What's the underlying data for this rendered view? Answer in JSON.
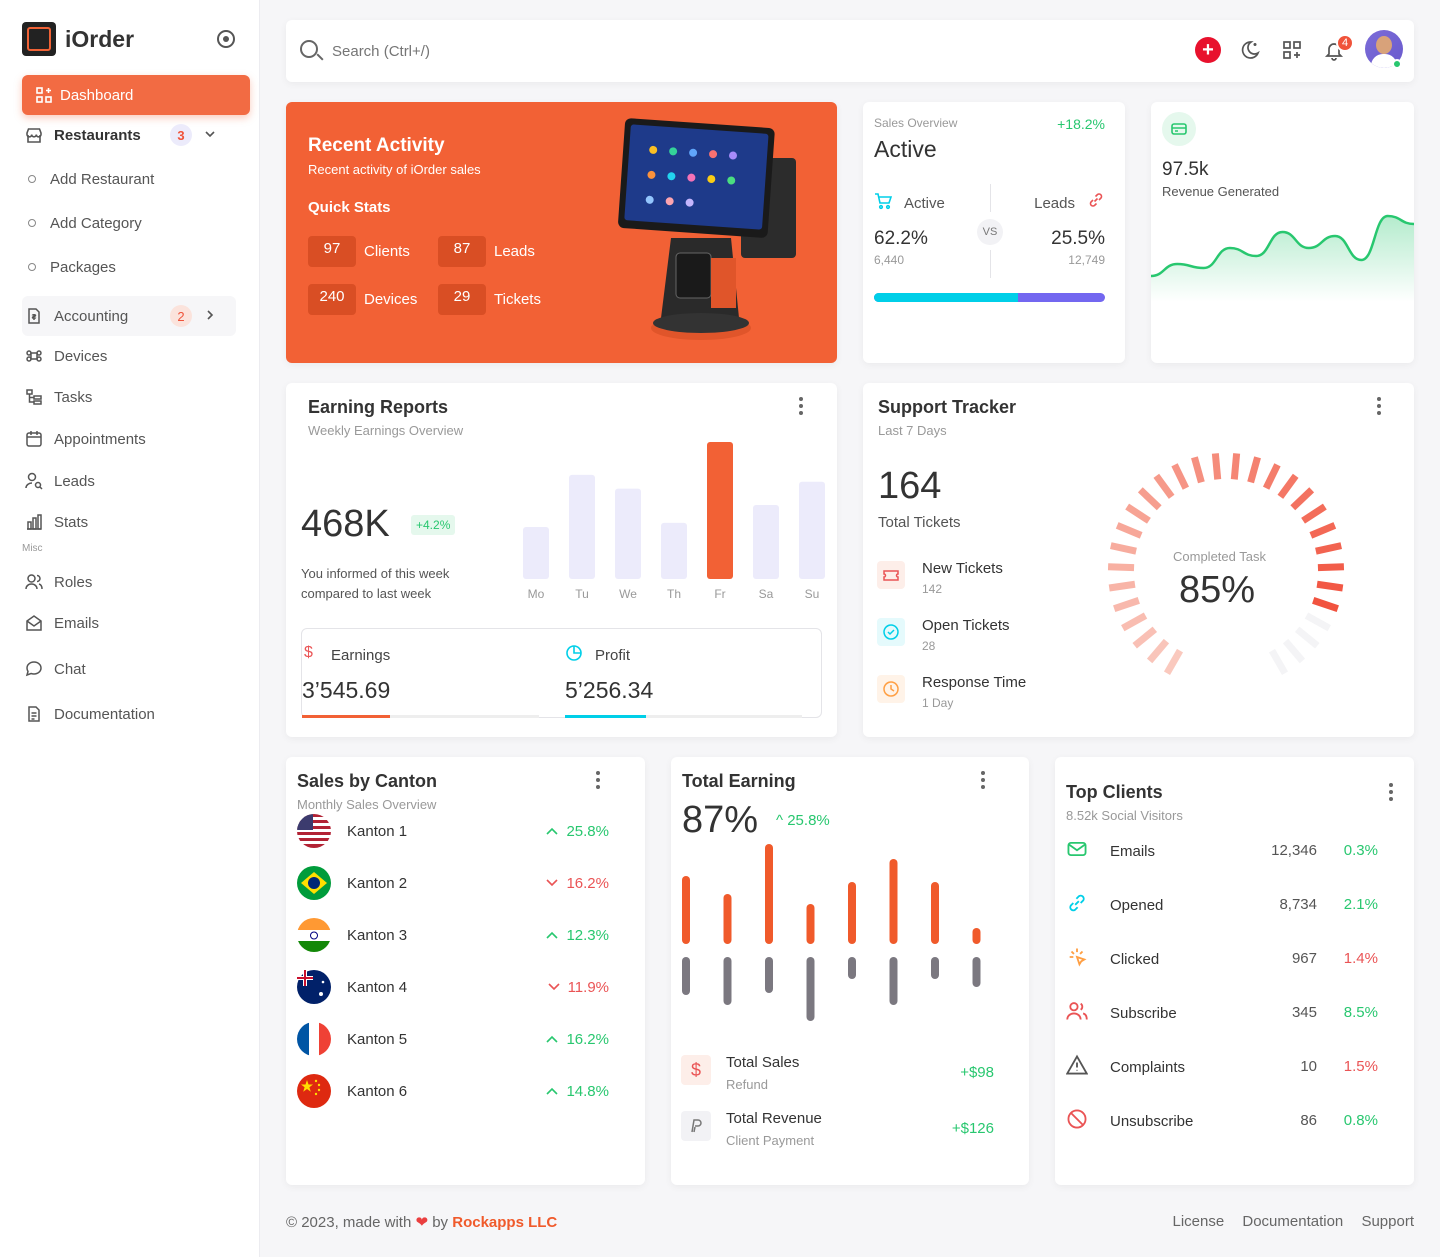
{
  "brand": {
    "name": "iOrder"
  },
  "sidebar": {
    "dashboard": "Dashboard",
    "restaurants": {
      "label": "Restaurants",
      "badge": "3"
    },
    "subs": [
      "Add Restaurant",
      "Add Category",
      "Packages"
    ],
    "accounting": {
      "label": "Accounting",
      "badge": "2"
    },
    "items": [
      "Devices",
      "Tasks",
      "Appointments",
      "Leads",
      "Stats"
    ],
    "misc_label": "Misc",
    "misc_items": [
      "Roles",
      "Emails",
      "Chat",
      "Documentation"
    ]
  },
  "topbar": {
    "search_placeholder": "Search (Ctrl+/)",
    "notif_count": "4"
  },
  "recent": {
    "title": "Recent Activity",
    "subtitle": "Recent activity of iOrder sales",
    "quick": "Quick Stats",
    "stats": [
      {
        "num": "97",
        "label": "Clients"
      },
      {
        "num": "87",
        "label": "Leads"
      },
      {
        "num": "240",
        "label": "Devices"
      },
      {
        "num": "29",
        "label": "Tickets"
      }
    ]
  },
  "sales_overview": {
    "label": "Sales Overview",
    "change": "+18.2%",
    "title": "Active",
    "left": {
      "label": "Active",
      "pct": "62.2%",
      "count": "6,440"
    },
    "right": {
      "label": "Leads",
      "pct": "25.5%",
      "count": "12,749"
    },
    "vs": "VS",
    "split": 0.622
  },
  "revenue": {
    "value": "97.5k",
    "label": "Revenue Generated",
    "points": [
      0.2,
      0.35,
      0.3,
      0.55,
      0.45,
      0.75,
      0.55,
      0.7,
      0.4,
      0.95,
      0.85
    ]
  },
  "earning": {
    "title": "Earning Reports",
    "subtitle": "Weekly Earnings Overview",
    "value": "468K",
    "change": "+4.2%",
    "note1": "You informed of this week",
    "note2": "compared to last week",
    "chart_data": {
      "type": "bar",
      "categories": [
        "Mo",
        "Tu",
        "We",
        "Th",
        "Fr",
        "Sa",
        "Su"
      ],
      "values": [
        38,
        76,
        66,
        41,
        100,
        54,
        71
      ],
      "highlight": "Fr"
    },
    "earnings": {
      "label": "Earnings",
      "value": "3’545.69",
      "progress": 0.37
    },
    "profit": {
      "label": "Profit",
      "value": "5’256.34",
      "progress": 0.34
    }
  },
  "support": {
    "title": "Support Tracker",
    "subtitle": "Last 7 Days",
    "total": "164",
    "total_label": "Total Tickets",
    "rows": [
      {
        "label": "New Tickets",
        "value": "142"
      },
      {
        "label": "Open Tickets",
        "value": "28"
      },
      {
        "label": "Response Time",
        "value": "1 Day"
      }
    ],
    "gauge_label": "Completed Task",
    "gauge_value": "85%",
    "gauge_fraction": 0.85
  },
  "canton": {
    "title": "Sales by Canton",
    "subtitle": "Monthly Sales Overview",
    "rows": [
      {
        "name": "Kanton 1",
        "change": "25.8%",
        "dir": "up",
        "flag": "us"
      },
      {
        "name": "Kanton 2",
        "change": "16.2%",
        "dir": "down",
        "flag": "br"
      },
      {
        "name": "Kanton 3",
        "change": "12.3%",
        "dir": "up",
        "flag": "in"
      },
      {
        "name": "Kanton 4",
        "change": "11.9%",
        "dir": "down",
        "flag": "au"
      },
      {
        "name": "Kanton 5",
        "change": "16.2%",
        "dir": "up",
        "flag": "fr"
      },
      {
        "name": "Kanton 6",
        "change": "14.8%",
        "dir": "up",
        "flag": "cn"
      }
    ]
  },
  "total_earning": {
    "title": "Total Earning",
    "value": "87%",
    "change": "25.8%",
    "chart_data": {
      "type": "bar",
      "series": [
        {
          "values": [
            68,
            50,
            100,
            40,
            62,
            85,
            62,
            16
          ]
        },
        {
          "values": [
            38,
            48,
            36,
            64,
            22,
            48,
            22,
            30
          ]
        }
      ]
    },
    "rows": [
      {
        "label": "Total Sales",
        "sub": "Refund",
        "value": "+$98"
      },
      {
        "label": "Total Revenue",
        "sub": "Client Payment",
        "value": "+$126"
      }
    ]
  },
  "top_clients": {
    "title": "Top Clients",
    "subtitle": "8.52k Social Visitors",
    "rows": [
      {
        "label": "Emails",
        "count": "12,346",
        "pct": "0.3%",
        "color": "#28c76f",
        "icon": "mail-icon"
      },
      {
        "label": "Opened",
        "count": "8,734",
        "pct": "2.1%",
        "color": "#00cfe8",
        "icon": "link-icon"
      },
      {
        "label": "Clicked",
        "count": "967",
        "pct": "1.4%",
        "color": "#ff9f43",
        "icon": "click-icon"
      },
      {
        "label": "Subscribe",
        "count": "345",
        "pct": "8.5%",
        "color": "#ea5455",
        "icon": "users-icon"
      },
      {
        "label": "Complaints",
        "count": "10",
        "pct": "1.5%",
        "color": "#555555",
        "icon": "alert-icon"
      },
      {
        "label": "Unsubscribe",
        "count": "86",
        "pct": "0.8%",
        "color": "#ea5455",
        "icon": "ban-icon"
      }
    ]
  },
  "footer": {
    "copy": "© 2023, made with",
    "by": "by",
    "company": "Rockapps LLC",
    "links": [
      "License",
      "Documentation",
      "Support"
    ]
  },
  "colors": {
    "accent": "#f26135",
    "green": "#28c76f",
    "red": "#ea5455",
    "lavender": "#ecebfb",
    "cyan": "#00cfe8",
    "purple": "#7367f0"
  }
}
